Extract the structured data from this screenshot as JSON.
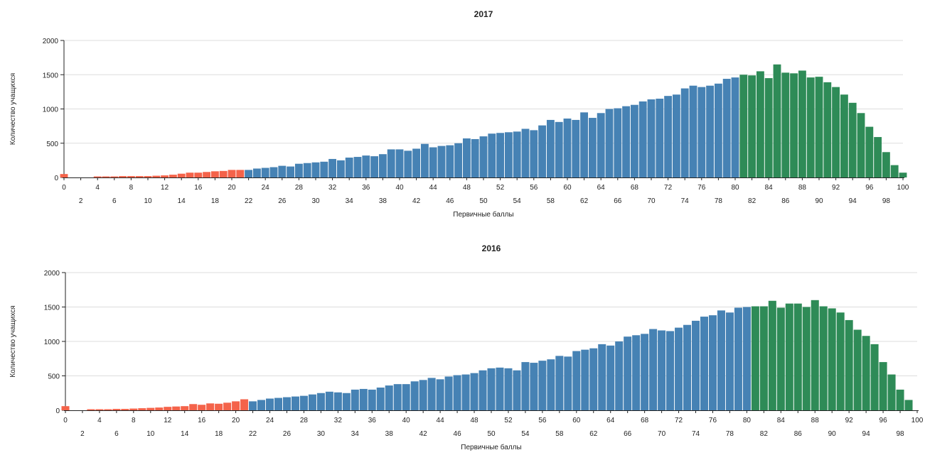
{
  "colors": {
    "fail": "#f4634a",
    "middle": "#4682b4",
    "high": "#2e8b57"
  },
  "chart_data": [
    {
      "type": "bar",
      "title": "2017",
      "xlabel": "Первичные баллы",
      "ylabel": "Количество учащихся",
      "ylim": [
        0,
        2000
      ],
      "yticks": [
        0,
        500,
        1000,
        1500,
        2000
      ],
      "xticks_top": [
        0,
        4,
        8,
        12,
        16,
        20,
        24,
        28,
        32,
        36,
        40,
        44,
        48,
        52,
        56,
        60,
        64,
        68,
        72,
        76,
        80,
        84,
        88,
        92,
        96,
        100
      ],
      "xticks_bottom": [
        2,
        6,
        10,
        14,
        18,
        22,
        26,
        30,
        34,
        38,
        42,
        46,
        50,
        54,
        58,
        62,
        66,
        70,
        74,
        78,
        82,
        86,
        90,
        94,
        98
      ],
      "grid": true,
      "color_groups": [
        {
          "range": [
            0,
            21
          ],
          "color": "fail"
        },
        {
          "range": [
            22,
            80
          ],
          "color": "middle"
        },
        {
          "range": [
            81,
            100
          ],
          "color": "high"
        }
      ],
      "x": [
        0,
        1,
        2,
        3,
        4,
        5,
        6,
        7,
        8,
        9,
        10,
        11,
        12,
        13,
        14,
        15,
        16,
        17,
        18,
        19,
        20,
        21,
        22,
        23,
        24,
        25,
        26,
        27,
        28,
        29,
        30,
        31,
        32,
        33,
        34,
        35,
        36,
        37,
        38,
        39,
        40,
        41,
        42,
        43,
        44,
        45,
        46,
        47,
        48,
        49,
        50,
        51,
        52,
        53,
        54,
        55,
        56,
        57,
        58,
        59,
        60,
        61,
        62,
        63,
        64,
        65,
        66,
        67,
        68,
        69,
        70,
        71,
        72,
        73,
        74,
        75,
        76,
        77,
        78,
        79,
        80,
        81,
        82,
        83,
        84,
        85,
        86,
        87,
        88,
        89,
        90,
        91,
        92,
        93,
        94,
        95,
        96,
        97,
        98,
        99,
        100
      ],
      "values": [
        50,
        0,
        0,
        0,
        15,
        15,
        15,
        20,
        20,
        20,
        20,
        25,
        30,
        40,
        55,
        70,
        70,
        80,
        90,
        95,
        110,
        110,
        110,
        130,
        140,
        150,
        170,
        160,
        200,
        210,
        220,
        230,
        270,
        250,
        290,
        300,
        320,
        310,
        340,
        410,
        410,
        390,
        420,
        490,
        440,
        460,
        470,
        500,
        570,
        560,
        600,
        640,
        650,
        660,
        670,
        710,
        690,
        760,
        840,
        810,
        860,
        840,
        950,
        870,
        940,
        1000,
        1010,
        1040,
        1060,
        1110,
        1140,
        1150,
        1190,
        1210,
        1300,
        1340,
        1320,
        1340,
        1370,
        1440,
        1460,
        1500,
        1490,
        1550,
        1450,
        1650,
        1530,
        1520,
        1560,
        1460,
        1470,
        1390,
        1320,
        1210,
        1090,
        940,
        740,
        590,
        370,
        180,
        70
      ]
    },
    {
      "type": "bar",
      "title": "2016",
      "xlabel": "Первичные баллы",
      "ylabel": "Количество учащихся",
      "ylim": [
        0,
        2000
      ],
      "yticks": [
        0,
        500,
        1000,
        1500,
        2000
      ],
      "xticks_top": [
        0,
        4,
        8,
        12,
        16,
        20,
        24,
        28,
        32,
        36,
        40,
        44,
        48,
        52,
        56,
        60,
        64,
        68,
        72,
        76,
        80,
        84,
        88,
        92,
        96,
        100
      ],
      "xticks_bottom": [
        2,
        6,
        10,
        14,
        18,
        22,
        26,
        30,
        34,
        38,
        42,
        46,
        50,
        54,
        58,
        62,
        66,
        70,
        74,
        78,
        82,
        86,
        90,
        94,
        98
      ],
      "grid": true,
      "color_groups": [
        {
          "range": [
            0,
            21
          ],
          "color": "fail"
        },
        {
          "range": [
            22,
            80
          ],
          "color": "middle"
        },
        {
          "range": [
            81,
            100
          ],
          "color": "high"
        }
      ],
      "x": [
        0,
        1,
        2,
        3,
        4,
        5,
        6,
        7,
        8,
        9,
        10,
        11,
        12,
        13,
        14,
        15,
        16,
        17,
        18,
        19,
        20,
        21,
        22,
        23,
        24,
        25,
        26,
        27,
        28,
        29,
        30,
        31,
        32,
        33,
        34,
        35,
        36,
        37,
        38,
        39,
        40,
        41,
        42,
        43,
        44,
        45,
        46,
        47,
        48,
        49,
        50,
        51,
        52,
        53,
        54,
        55,
        56,
        57,
        58,
        59,
        60,
        61,
        62,
        63,
        64,
        65,
        66,
        67,
        68,
        69,
        70,
        71,
        72,
        73,
        74,
        75,
        76,
        77,
        78,
        79,
        80,
        81,
        82,
        83,
        84,
        85,
        86,
        87,
        88,
        89,
        90,
        91,
        92,
        93,
        94,
        95,
        96,
        97,
        98,
        99,
        100
      ],
      "values": [
        60,
        0,
        0,
        15,
        15,
        15,
        20,
        20,
        25,
        30,
        35,
        40,
        50,
        55,
        60,
        90,
        80,
        100,
        95,
        110,
        130,
        160,
        130,
        150,
        170,
        180,
        190,
        200,
        210,
        230,
        250,
        270,
        260,
        250,
        300,
        310,
        300,
        330,
        360,
        380,
        380,
        420,
        440,
        470,
        450,
        490,
        510,
        520,
        540,
        580,
        610,
        620,
        610,
        580,
        700,
        690,
        720,
        740,
        790,
        780,
        860,
        880,
        900,
        960,
        940,
        1000,
        1070,
        1090,
        1110,
        1180,
        1160,
        1150,
        1200,
        1240,
        1300,
        1360,
        1380,
        1450,
        1420,
        1490,
        1500,
        1510,
        1510,
        1590,
        1490,
        1550,
        1550,
        1500,
        1600,
        1510,
        1480,
        1420,
        1310,
        1170,
        1080,
        960,
        700,
        520,
        300,
        150,
        0
      ]
    }
  ]
}
